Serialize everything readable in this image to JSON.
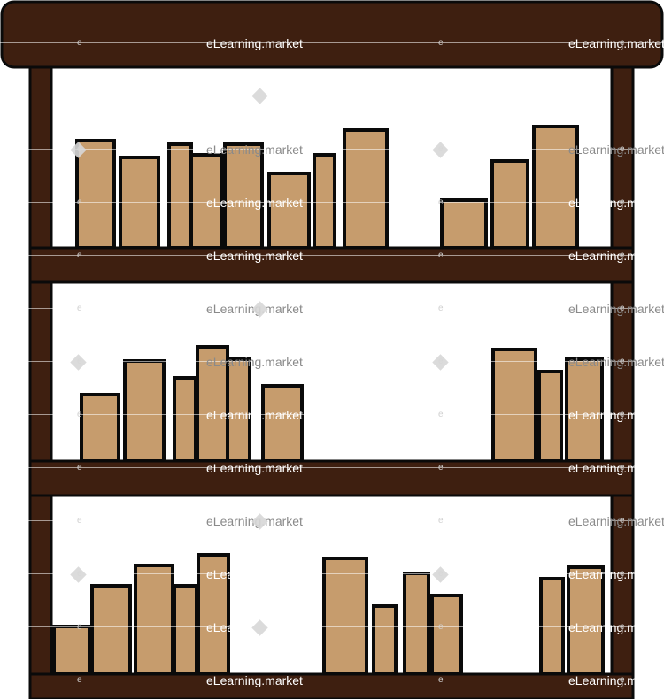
{
  "scene": {
    "description_label": "Bookshelf illustration",
    "colors": {
      "wood": "#3e1f10",
      "outline": "#0a0a0a",
      "book_fill": "#c69c6d",
      "background": "#ffffff",
      "watermark_text_light": "#ffffff",
      "watermark_text_dark": "#8a8a8a",
      "watermark_diamond": "#d7d7d7"
    }
  },
  "watermark": {
    "text": "eLearning.market",
    "mark": "e"
  }
}
